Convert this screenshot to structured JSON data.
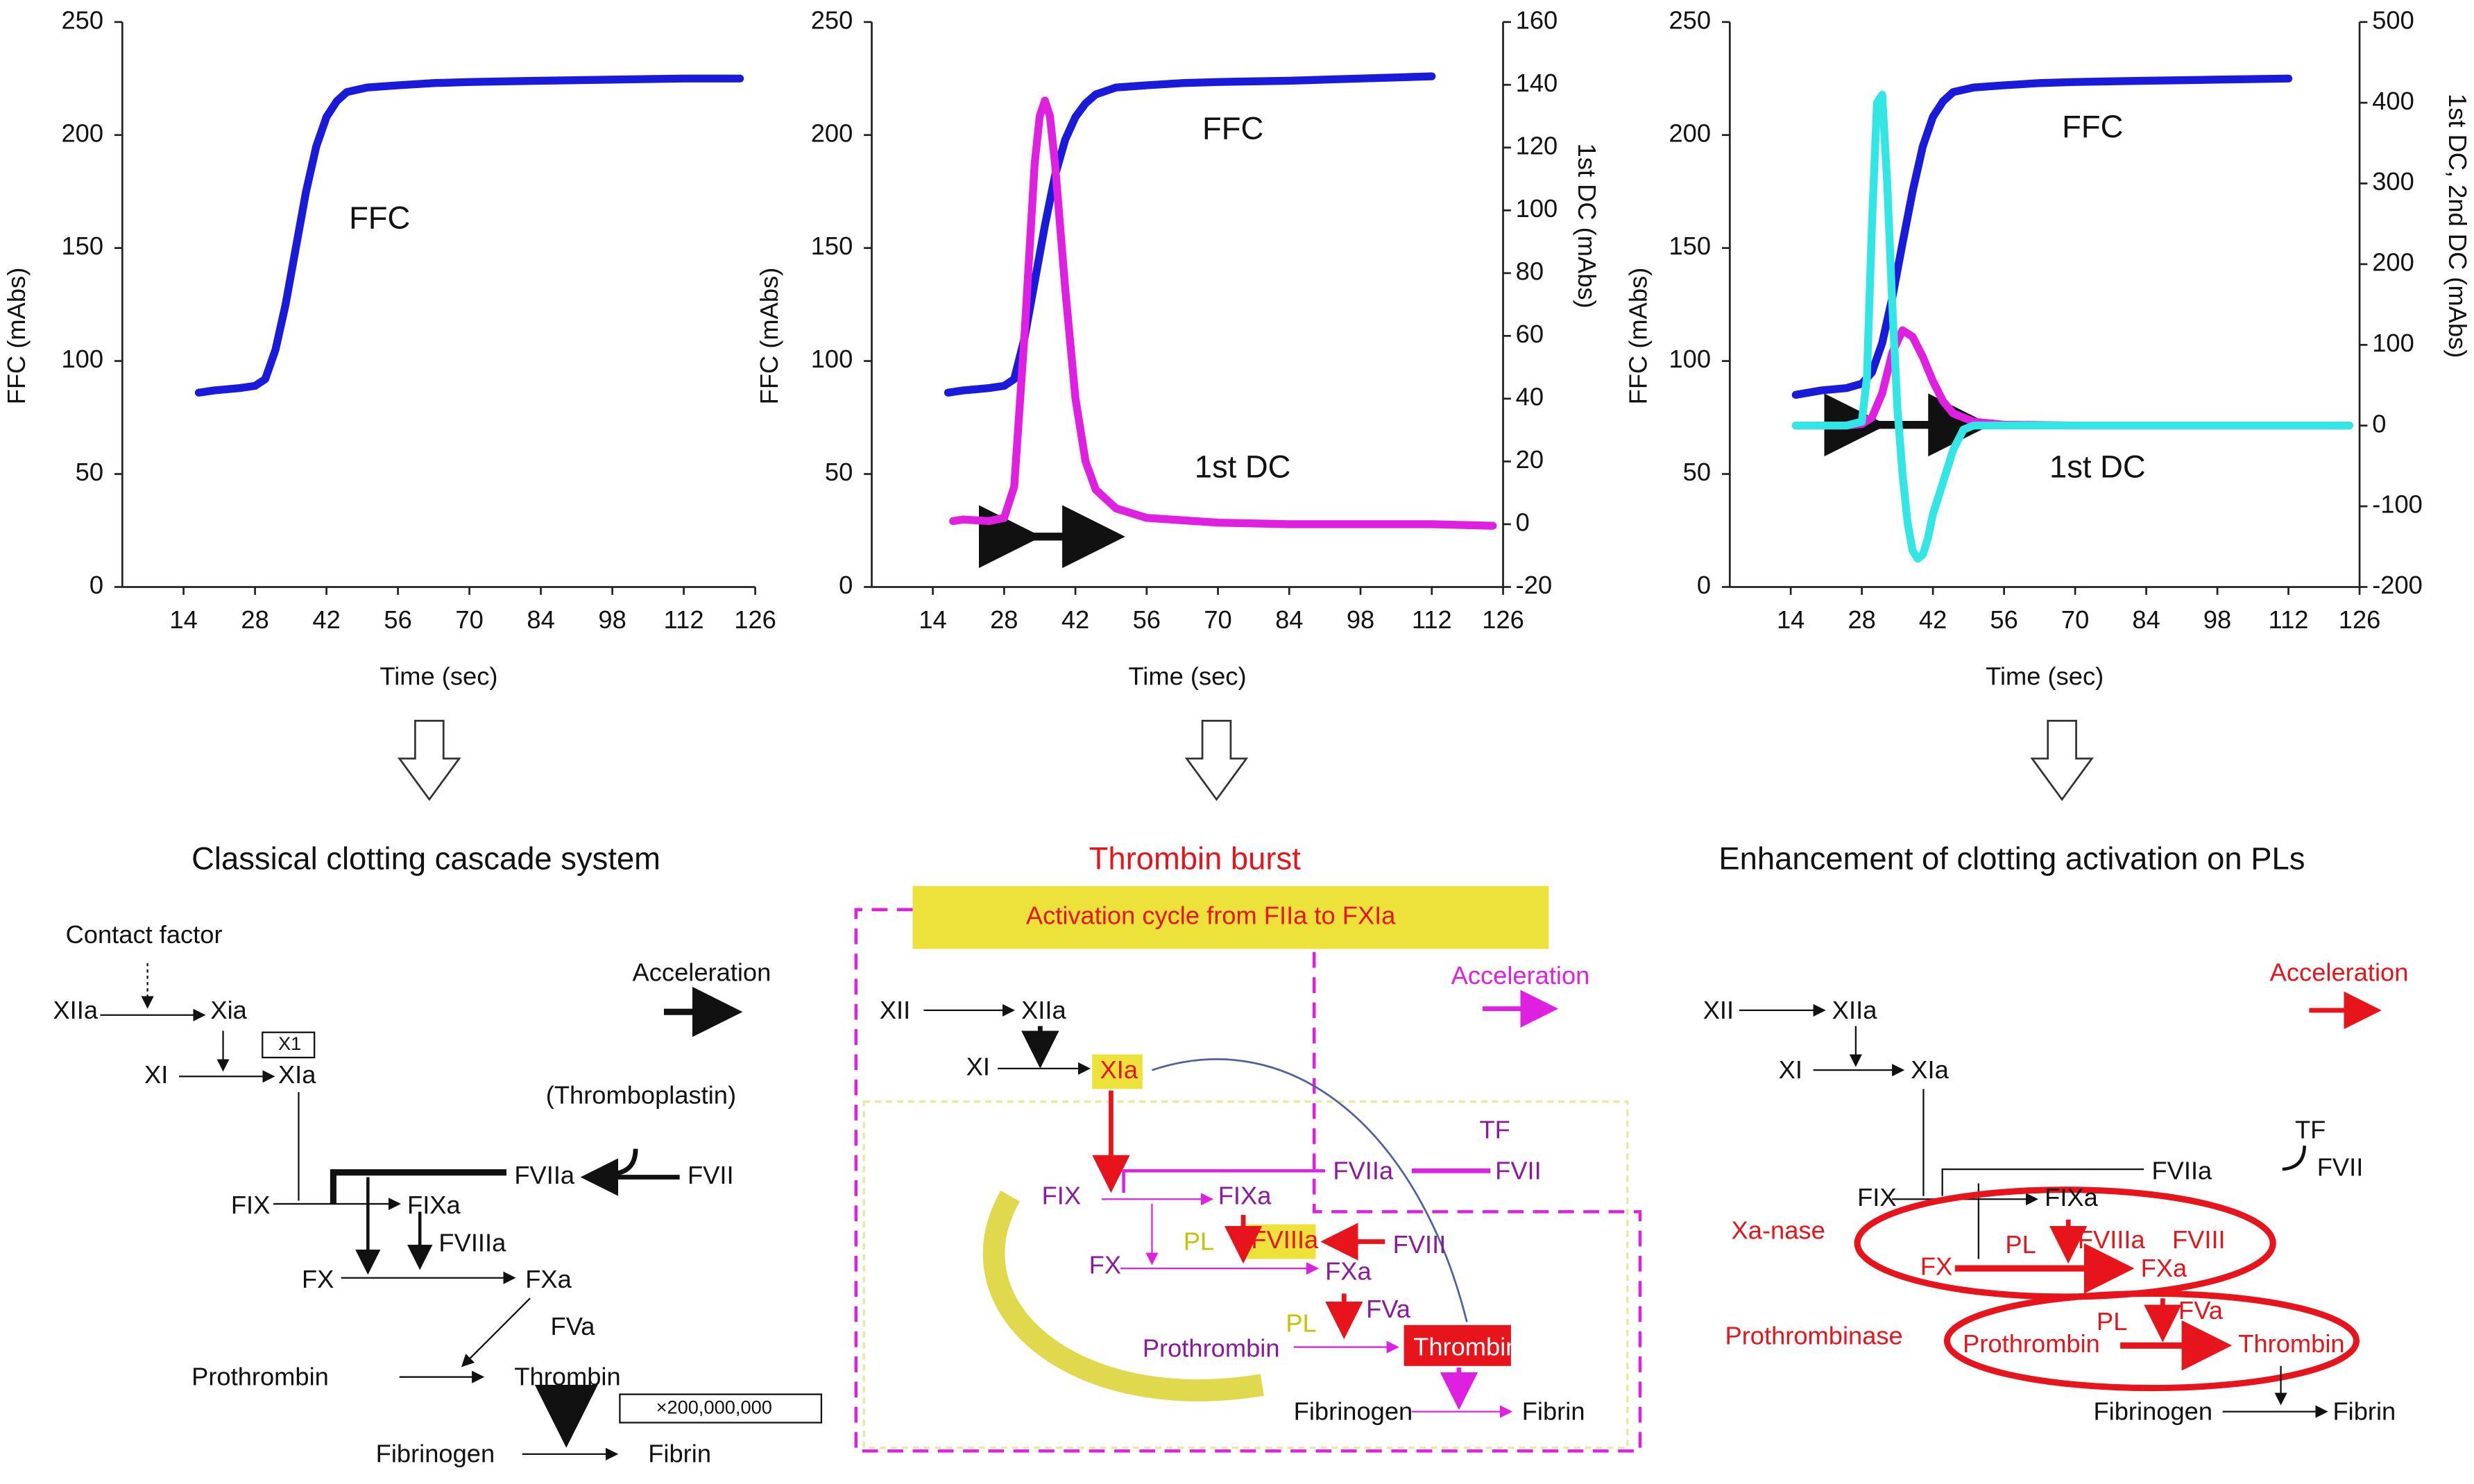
{
  "chart_data": [
    {
      "type": "line",
      "xlabel": "Time (sec)",
      "ylabel": "FFC (mAbs)",
      "xlim": [
        2,
        126
      ],
      "xticks": [
        14,
        28,
        42,
        56,
        70,
        84,
        98,
        112,
        126
      ],
      "ylim": [
        0,
        250
      ],
      "yticks": [
        0,
        50,
        100,
        150,
        200,
        250
      ],
      "annotations": [
        "FFC"
      ],
      "series": [
        {
          "name": "FFC",
          "color": "#1a1adb",
          "x": [
            17,
            20,
            25,
            28,
            30,
            32,
            34,
            36,
            38,
            40,
            42,
            44,
            46,
            50,
            56,
            63,
            70,
            84,
            98,
            112,
            123
          ],
          "values": [
            86,
            87,
            88,
            89,
            92,
            105,
            125,
            150,
            175,
            195,
            208,
            215,
            219,
            221,
            222,
            223,
            223.5,
            224,
            224.5,
            225,
            225
          ]
        }
      ]
    },
    {
      "type": "line",
      "xlabel": "Time (sec)",
      "ylabel": "FFC (mAbs)",
      "y2label": "1st DC (mAbs)",
      "xlim": [
        2,
        126
      ],
      "xticks": [
        14,
        28,
        42,
        56,
        70,
        84,
        98,
        112,
        126
      ],
      "ylim": [
        0,
        250
      ],
      "yticks": [
        0,
        50,
        100,
        150,
        200,
        250
      ],
      "y2lim": [
        -20,
        160
      ],
      "y2ticks": [
        -20,
        0,
        20,
        40,
        60,
        80,
        100,
        120,
        140,
        160
      ],
      "annotations": [
        "FFC",
        "1st DC"
      ],
      "series": [
        {
          "name": "FFC",
          "color": "#1a1adb",
          "x": [
            17,
            20,
            25,
            28,
            30,
            32,
            34,
            36,
            38,
            40,
            42,
            44,
            46,
            50,
            56,
            63,
            70,
            84,
            98,
            112
          ],
          "values": [
            86,
            87,
            88,
            89,
            92,
            110,
            135,
            160,
            182,
            198,
            208,
            214,
            218,
            221,
            222,
            223,
            223.5,
            224,
            225,
            226
          ]
        },
        {
          "name": "1st DC",
          "color": "#e020e0",
          "axis": "y2",
          "x": [
            18,
            20,
            25,
            28,
            30,
            32,
            34,
            35,
            36,
            37,
            38,
            40,
            42,
            44,
            46,
            50,
            56,
            70,
            84,
            98,
            112,
            124
          ],
          "values": [
            1,
            1.5,
            1,
            2,
            12,
            60,
            115,
            130,
            135,
            130,
            115,
            75,
            40,
            20,
            11,
            5,
            2,
            0.5,
            0,
            0,
            0,
            -0.5
          ]
        }
      ]
    },
    {
      "type": "line",
      "xlabel": "Time (sec)",
      "ylabel": "FFC (mAbs)",
      "y2label": "1st DC, 2nd DC (mAbs)",
      "xlim": [
        2,
        126
      ],
      "xticks": [
        14,
        28,
        42,
        56,
        70,
        84,
        98,
        112,
        126
      ],
      "ylim": [
        0,
        250
      ],
      "yticks": [
        0,
        50,
        100,
        150,
        200,
        250
      ],
      "y2lim": [
        -200,
        500
      ],
      "y2ticks": [
        -200,
        -100,
        0,
        100,
        200,
        300,
        400,
        500
      ],
      "annotations": [
        "FFC",
        "1st DC"
      ],
      "series": [
        {
          "name": "FFC",
          "color": "#1a1adb",
          "x": [
            15,
            20,
            25,
            28,
            30,
            32,
            34,
            36,
            38,
            40,
            42,
            44,
            46,
            50,
            56,
            63,
            70,
            84,
            98,
            112
          ],
          "values": [
            85,
            87,
            88,
            90,
            95,
            108,
            128,
            152,
            175,
            195,
            208,
            215,
            219,
            221,
            222,
            223,
            223.5,
            224,
            224.5,
            225
          ]
        },
        {
          "name": "1st DC",
          "color": "#e020e0",
          "axis": "y2",
          "x": [
            15,
            20,
            25,
            28,
            30,
            32,
            34,
            36,
            38,
            40,
            42,
            44,
            46,
            50,
            56,
            70,
            84,
            98,
            112,
            124
          ],
          "values": [
            0,
            0,
            0,
            2,
            10,
            40,
            90,
            118,
            110,
            85,
            55,
            30,
            15,
            5,
            1,
            0,
            0,
            0,
            0,
            0
          ]
        },
        {
          "name": "2nd DC",
          "color": "#33e6e6",
          "axis": "y2",
          "x": [
            15,
            20,
            25,
            28,
            29,
            30,
            31,
            32,
            33,
            34,
            35,
            36,
            37,
            38,
            39,
            40,
            41,
            42,
            44,
            46,
            48,
            50,
            56,
            70,
            84,
            98,
            112,
            124
          ],
          "values": [
            0,
            0,
            0,
            5,
            60,
            250,
            400,
            410,
            300,
            150,
            20,
            -60,
            -120,
            -155,
            -165,
            -160,
            -140,
            -110,
            -70,
            -30,
            -5,
            0,
            0,
            0,
            0,
            0,
            0,
            0
          ]
        }
      ]
    }
  ],
  "diagrams": [
    {
      "title": "Classical clotting cascade system",
      "labels": [
        "Contact factor",
        "Acceleration",
        "XIIa",
        "Xia",
        "X1",
        "XI",
        "XIa",
        "(Thromboplastin)",
        "FVIIa",
        "FVII",
        "FIX",
        "FIXa",
        "FVIIIa",
        "FX",
        "FXa",
        "FVa",
        "Prothrombin",
        "Thrombin",
        "×200,000,000",
        "Fibrinogen",
        "Fibrin"
      ]
    },
    {
      "title": "Thrombin burst",
      "labels": [
        "Activation cycle from FIIa to FXIa",
        "XII",
        "XIIa",
        "Acceleration",
        "XI",
        "XIa",
        "TF",
        "FVIIa",
        "FVII",
        "FIX",
        "FIXa",
        "PL",
        "FVIIIa",
        "FVIII",
        "FX",
        "FXa",
        "FVa",
        "PL",
        "Prothrombin",
        "Thrombin",
        "Fibrinogen",
        "Fibrin"
      ]
    },
    {
      "title": "Enhancement of clotting activation on PLs",
      "labels": [
        "Acceleration",
        "XII",
        "XIIa",
        "XI",
        "XIa",
        "TF",
        "FVIIa",
        "FVII",
        "FIX",
        "FIXa",
        "Xa-nase",
        "PL",
        "FVIIIa",
        "FVIII",
        "FX",
        "FXa",
        "Prothrombinase",
        "FVa",
        "PL",
        "Prothrombin",
        "Thrombin",
        "Fibrinogen",
        "Fibrin"
      ]
    }
  ]
}
